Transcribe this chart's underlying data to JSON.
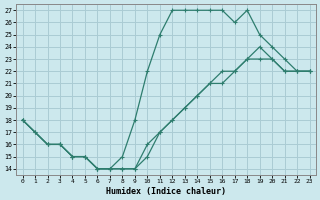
{
  "xlabel": "Humidex (Indice chaleur)",
  "ylabel": "",
  "bg_color": "#cce8ed",
  "grid_color": "#aaccd4",
  "line_color": "#2e7d6e",
  "xlim": [
    -0.5,
    23.5
  ],
  "ylim": [
    13.5,
    27.5
  ],
  "xticks": [
    0,
    1,
    2,
    3,
    4,
    5,
    6,
    7,
    8,
    9,
    10,
    11,
    12,
    13,
    14,
    15,
    16,
    17,
    18,
    19,
    20,
    21,
    22,
    23
  ],
  "yticks": [
    14,
    15,
    16,
    17,
    18,
    19,
    20,
    21,
    22,
    23,
    24,
    25,
    26,
    27
  ],
  "line1_x": [
    0,
    1,
    2,
    3,
    4,
    5,
    6,
    7,
    8,
    9,
    10,
    11,
    12,
    13,
    14,
    15,
    16,
    17,
    18,
    19,
    20,
    21,
    22,
    23
  ],
  "line1_y": [
    18,
    17,
    16,
    16,
    15,
    15,
    14,
    14,
    15,
    18,
    22,
    25,
    27,
    27,
    27,
    27,
    27,
    26,
    27,
    25,
    24,
    23,
    22,
    22
  ],
  "line2_x": [
    0,
    2,
    3,
    4,
    5,
    6,
    7,
    8,
    9,
    10,
    11,
    12,
    13,
    14,
    15,
    16,
    17,
    18,
    19,
    20,
    21,
    22,
    23
  ],
  "line2_y": [
    18,
    16,
    16,
    15,
    15,
    14,
    14,
    14,
    14,
    15,
    17,
    18,
    19,
    20,
    21,
    22,
    22,
    23,
    23,
    23,
    22,
    22,
    22
  ],
  "line3_x": [
    0,
    1,
    2,
    3,
    4,
    5,
    6,
    7,
    8,
    9,
    10,
    11,
    12,
    13,
    14,
    15,
    16,
    17,
    18,
    19,
    20,
    21,
    22,
    23
  ],
  "line3_y": [
    18,
    17,
    16,
    16,
    15,
    15,
    14,
    14,
    14,
    14,
    16,
    17,
    18,
    19,
    20,
    21,
    21,
    22,
    23,
    24,
    23,
    22,
    22,
    22
  ]
}
